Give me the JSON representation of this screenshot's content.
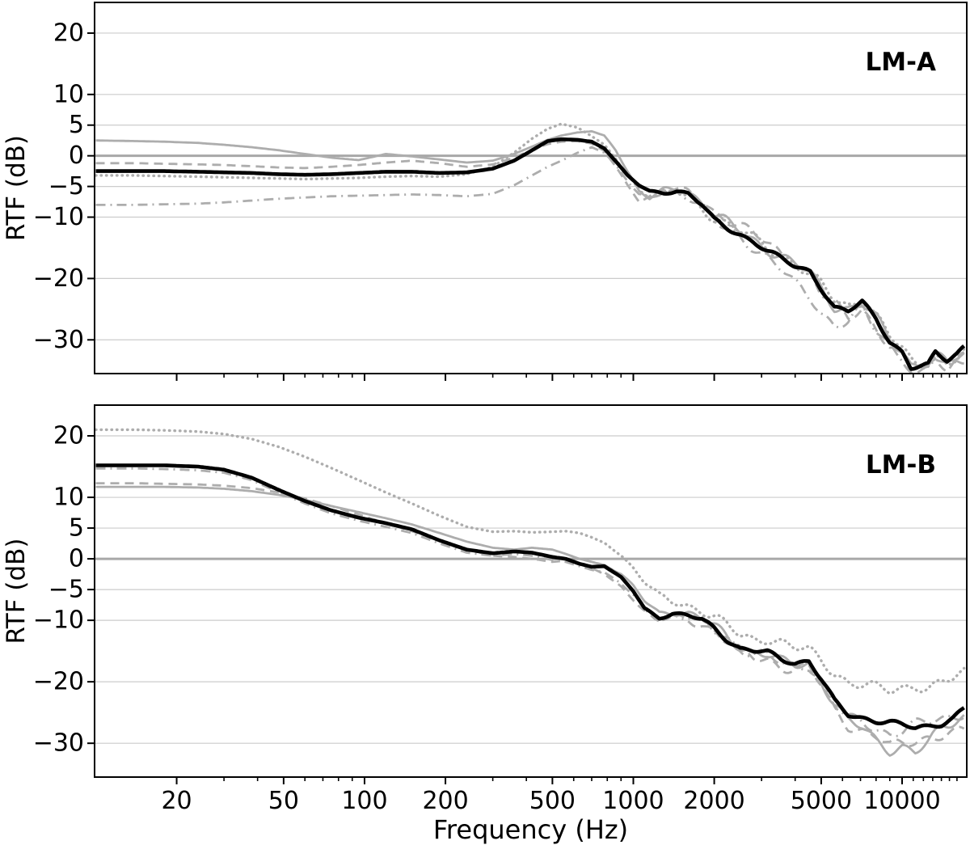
{
  "figure": {
    "xlabel": "Frequency (Hz)",
    "ylabel": "RTF (dB)",
    "background": "#ffffff",
    "colors": {
      "gray_line": "#adadad",
      "black_line": "#000000",
      "gridline": "#cccccc",
      "zero_line": "#a8a8a8",
      "axis": "#000000"
    },
    "xtick_labels": [
      "20",
      "50",
      "100",
      "200",
      "500",
      "1000",
      "2000",
      "5000",
      "10000"
    ],
    "ytick_labels": [
      "20",
      "10",
      "5",
      "0",
      "−5",
      "−10",
      "−20",
      "−30"
    ]
  },
  "chart_data": [
    {
      "type": "line",
      "title": "LM-A",
      "xlabel": "",
      "ylabel": "RTF (dB)",
      "x_scale": "log",
      "xlim": [
        9.9,
        17400
      ],
      "ylim": [
        -35.5,
        25
      ],
      "grid": true,
      "legend": "none",
      "zero_reference_line": 0,
      "yticks": [
        20,
        10,
        5,
        0,
        -5,
        -10,
        -20,
        -30
      ],
      "xticks_major": [
        20,
        50,
        100,
        200,
        500,
        1000,
        2000,
        5000,
        10000
      ],
      "xticks_minor": [
        30,
        40,
        60,
        70,
        80,
        90,
        300,
        400,
        600,
        700,
        800,
        900,
        3000,
        4000,
        6000,
        7000,
        8000,
        9000,
        11000,
        12000,
        13000,
        14000,
        15000,
        16000
      ],
      "show_xtick_labels": false,
      "x": [
        10,
        14,
        18,
        24,
        30,
        38,
        48,
        60,
        75,
        95,
        120,
        150,
        190,
        240,
        300,
        360,
        420,
        480,
        540,
        620,
        700,
        780,
        860,
        950,
        1050,
        1150,
        1300,
        1450,
        1600,
        1800,
        2000,
        2250,
        2500,
        2800,
        3150,
        3550,
        4000,
        4550,
        5000,
        5600,
        6300,
        7100,
        8000,
        9000,
        10000,
        10800,
        11500,
        12500,
        13300,
        14700,
        16000,
        17000
      ],
      "series": [
        {
          "name": "gray-solid",
          "style": "solid",
          "color": "#adadad",
          "width": 2.8,
          "values": [
            2.5,
            2.4,
            2.3,
            2.1,
            1.8,
            1.4,
            0.9,
            0.3,
            -0.3,
            -0.7,
            0.3,
            -0.1,
            -0.6,
            -1.1,
            -0.8,
            0.3,
            1.5,
            2.6,
            3.3,
            3.8,
            4.0,
            3.3,
            1.0,
            -2.5,
            -5.8,
            -7.0,
            -5.6,
            -5.2,
            -5.8,
            -7.6,
            -9.8,
            -11.0,
            -12.2,
            -13.6,
            -15.2,
            -16.5,
            -17.8,
            -19.0,
            -21.5,
            -24.5,
            -25.0,
            -24.2,
            -26.5,
            -29.8,
            -31.8,
            -34.0,
            -33.8,
            -33.8,
            -32.6,
            -33.8,
            -32.8,
            -32.3
          ]
        },
        {
          "name": "gray-dashed",
          "style": "dashed",
          "color": "#adadad",
          "width": 2.8,
          "values": [
            -1.2,
            -1.2,
            -1.3,
            -1.4,
            -1.5,
            -1.7,
            -1.9,
            -2.0,
            -1.8,
            -1.5,
            -1.1,
            -0.8,
            -1.2,
            -1.8,
            -1.4,
            -0.3,
            1.0,
            1.9,
            2.3,
            2.4,
            2.0,
            0.8,
            -1.8,
            -4.8,
            -7.2,
            -6.6,
            -5.3,
            -5.6,
            -6.1,
            -7.3,
            -9.2,
            -10.3,
            -11.3,
            -12.8,
            -14.3,
            -16.0,
            -17.3,
            -19.3,
            -22.5,
            -24.3,
            -26.3,
            -24.8,
            -28.0,
            -31.2,
            -33.0,
            -35.3,
            -35.0,
            -34.6,
            -33.0,
            -34.2,
            -33.2,
            -32.6
          ]
        },
        {
          "name": "gray-dashdot",
          "style": "dashdot",
          "color": "#adadad",
          "width": 2.8,
          "values": [
            -8.0,
            -8.0,
            -7.9,
            -7.8,
            -7.6,
            -7.3,
            -7.0,
            -6.8,
            -6.6,
            -6.5,
            -6.4,
            -6.3,
            -6.4,
            -6.6,
            -6.2,
            -4.8,
            -3.2,
            -1.8,
            -0.8,
            0.5,
            1.4,
            0.5,
            -1.5,
            -4.0,
            -6.5,
            -7.0,
            -5.8,
            -6.0,
            -6.5,
            -8.3,
            -10.8,
            -12.2,
            -13.3,
            -14.8,
            -16.5,
            -18.5,
            -21.0,
            -23.0,
            -25.5,
            -27.5,
            -27.0,
            -25.0,
            -28.5,
            -31.0,
            -32.5,
            -35.0,
            -34.8,
            -34.5,
            -33.0,
            -34.5,
            -33.5,
            -33.0
          ]
        },
        {
          "name": "gray-dotted",
          "style": "dotted",
          "color": "#adadad",
          "width": 3.4,
          "values": [
            -3.2,
            -3.2,
            -3.3,
            -3.4,
            -3.5,
            -3.6,
            -3.7,
            -3.8,
            -3.7,
            -3.6,
            -3.4,
            -3.3,
            -3.4,
            -3.0,
            -1.8,
            0.5,
            2.8,
            4.4,
            5.2,
            4.6,
            3.2,
            1.8,
            -0.5,
            -3.0,
            -5.5,
            -6.5,
            -6.2,
            -6.0,
            -6.6,
            -8.5,
            -10.0,
            -11.2,
            -12.2,
            -13.5,
            -15.0,
            -16.2,
            -17.5,
            -19.5,
            -21.0,
            -23.5,
            -24.5,
            -23.2,
            -26.0,
            -29.5,
            -31.5,
            -33.5,
            -34.0,
            -33.5,
            -32.5,
            -34.0,
            -33.0,
            -32.0
          ]
        },
        {
          "name": "black-mean",
          "style": "solid",
          "color": "#000000",
          "width": 4.6,
          "values": [
            -2.5,
            -2.5,
            -2.5,
            -2.6,
            -2.7,
            -2.8,
            -3.0,
            -3.1,
            -3.0,
            -2.8,
            -2.6,
            -2.6,
            -2.8,
            -2.7,
            -2.1,
            -0.8,
            0.9,
            2.4,
            2.7,
            2.6,
            2.3,
            1.2,
            -0.9,
            -3.2,
            -4.8,
            -5.8,
            -6.0,
            -5.7,
            -6.2,
            -8.0,
            -10.5,
            -11.8,
            -12.8,
            -14.0,
            -15.5,
            -16.8,
            -18.0,
            -18.8,
            -21.5,
            -24.8,
            -25.4,
            -23.8,
            -26.5,
            -30.2,
            -32.0,
            -34.6,
            -34.4,
            -34.2,
            -32.1,
            -33.3,
            -32.2,
            -31.0
          ]
        }
      ]
    },
    {
      "type": "line",
      "title": "LM-B",
      "xlabel": "Frequency (Hz)",
      "ylabel": "RTF (dB)",
      "x_scale": "log",
      "xlim": [
        9.9,
        17400
      ],
      "ylim": [
        -35.5,
        25
      ],
      "grid": true,
      "legend": "none",
      "zero_reference_line": 0,
      "yticks": [
        20,
        10,
        5,
        0,
        -5,
        -10,
        -20,
        -30
      ],
      "xticks_major": [
        20,
        50,
        100,
        200,
        500,
        1000,
        2000,
        5000,
        10000
      ],
      "xticks_minor": [
        30,
        40,
        60,
        70,
        80,
        90,
        300,
        400,
        600,
        700,
        800,
        900,
        3000,
        4000,
        6000,
        7000,
        8000,
        9000,
        11000,
        12000,
        13000,
        14000,
        15000,
        16000
      ],
      "show_xtick_labels": true,
      "x": [
        10,
        14,
        18,
        24,
        30,
        38,
        48,
        60,
        75,
        95,
        120,
        150,
        190,
        240,
        300,
        360,
        420,
        500,
        560,
        630,
        700,
        780,
        900,
        1000,
        1100,
        1250,
        1400,
        1600,
        1800,
        2000,
        2250,
        2500,
        2800,
        3150,
        3550,
        4000,
        4500,
        5000,
        5600,
        6300,
        7100,
        8000,
        9000,
        10000,
        11200,
        12500,
        14000,
        15500,
        17000
      ],
      "series": [
        {
          "name": "gray-solid",
          "style": "solid",
          "color": "#adadad",
          "width": 2.8,
          "values": [
            11.7,
            11.7,
            11.7,
            11.6,
            11.4,
            11.0,
            10.4,
            9.6,
            8.6,
            7.6,
            6.6,
            5.6,
            4.2,
            2.8,
            1.8,
            1.5,
            1.8,
            1.5,
            0.8,
            0.0,
            -0.5,
            -1.0,
            -2.5,
            -4.5,
            -6.8,
            -8.8,
            -8.5,
            -9.0,
            -9.8,
            -11.0,
            -12.8,
            -14.2,
            -15.2,
            -15.5,
            -16.8,
            -17.3,
            -17.0,
            -19.8,
            -23.5,
            -26.5,
            -27.5,
            -29.5,
            -31.0,
            -30.5,
            -31.5,
            -30.0,
            -27.5,
            -26.5,
            -25.5
          ]
        },
        {
          "name": "gray-dashed",
          "style": "dashed",
          "color": "#adadad",
          "width": 2.8,
          "values": [
            12.3,
            12.3,
            12.2,
            12.1,
            11.9,
            11.5,
            10.8,
            9.8,
            8.6,
            7.2,
            5.8,
            4.5,
            3.0,
            1.5,
            0.5,
            0.3,
            0.0,
            -0.5,
            -0.3,
            -0.8,
            -1.5,
            -2.5,
            -4.5,
            -6.5,
            -8.5,
            -10.0,
            -9.5,
            -10.0,
            -10.5,
            -11.8,
            -13.5,
            -15.2,
            -16.0,
            -16.3,
            -17.5,
            -18.0,
            -17.8,
            -20.5,
            -24.5,
            -27.0,
            -28.0,
            -29.0,
            -30.5,
            -30.0,
            -29.5,
            -29.0,
            -28.8,
            -28.5,
            -28.0
          ]
        },
        {
          "name": "gray-dashdot",
          "style": "dashdot",
          "color": "#adadad",
          "width": 2.8,
          "values": [
            14.7,
            14.7,
            14.6,
            14.4,
            14.0,
            12.8,
            10.8,
            9.0,
            7.4,
            6.2,
            5.2,
            4.2,
            2.5,
            1.0,
            0.5,
            0.8,
            0.5,
            -0.2,
            -0.5,
            -1.2,
            -1.8,
            -2.2,
            -4.0,
            -6.0,
            -8.2,
            -9.8,
            -9.2,
            -9.6,
            -10.2,
            -11.5,
            -13.0,
            -14.5,
            -15.5,
            -15.8,
            -17.0,
            -17.5,
            -17.2,
            -20.0,
            -23.8,
            -26.0,
            -26.5,
            -27.5,
            -28.5,
            -28.0,
            -27.0,
            -26.5,
            -26.0,
            -25.5,
            -25.0
          ]
        },
        {
          "name": "gray-dotted",
          "style": "dotted",
          "color": "#adadad",
          "width": 3.4,
          "values": [
            21.0,
            21.0,
            20.9,
            20.7,
            20.3,
            19.5,
            18.2,
            16.6,
            14.8,
            12.8,
            10.8,
            9.0,
            7.0,
            5.2,
            4.4,
            4.5,
            4.3,
            4.4,
            4.5,
            4.2,
            3.5,
            2.6,
            0.6,
            -1.5,
            -3.8,
            -6.0,
            -7.0,
            -7.6,
            -8.3,
            -9.5,
            -11.0,
            -12.5,
            -13.2,
            -12.8,
            -13.5,
            -14.5,
            -15.0,
            -16.5,
            -18.5,
            -20.0,
            -20.5,
            -21.0,
            -21.5,
            -21.0,
            -20.5,
            -21.0,
            -20.3,
            -19.5,
            -18.5
          ]
        },
        {
          "name": "black-mean",
          "style": "solid",
          "color": "#000000",
          "width": 4.6,
          "values": [
            15.2,
            15.2,
            15.2,
            15.0,
            14.5,
            13.2,
            11.2,
            9.4,
            7.9,
            6.7,
            5.8,
            4.8,
            3.0,
            1.5,
            0.9,
            1.2,
            1.0,
            0.3,
            0.0,
            -0.8,
            -1.3,
            -1.2,
            -3.0,
            -5.2,
            -8.0,
            -9.6,
            -9.0,
            -9.3,
            -9.8,
            -11.2,
            -13.2,
            -14.7,
            -15.0,
            -15.2,
            -16.3,
            -16.9,
            -16.6,
            -19.5,
            -23.2,
            -25.4,
            -25.9,
            -26.3,
            -26.5,
            -27.0,
            -27.6,
            -27.3,
            -26.8,
            -25.8,
            -24.2
          ]
        }
      ]
    }
  ]
}
